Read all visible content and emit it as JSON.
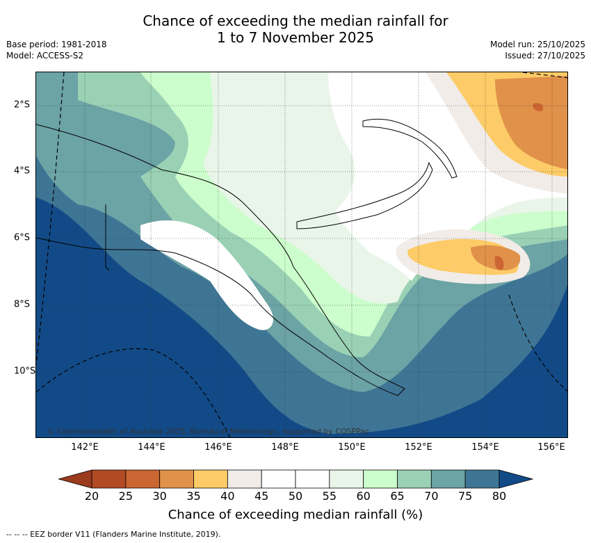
{
  "title": {
    "line1": "Chance of exceeding the median rainfall for",
    "line2": "1 to 7 November 2025"
  },
  "meta": {
    "base_period": "Base period: 1981-2018",
    "model": "Model: ACCESS-S2",
    "model_run": "Model run: 25/10/2025",
    "issued": "Issued: 27/10/2025"
  },
  "copyright": "© Commonwealth of Australia 2025, Bureau of Meteorology, supported by COSPPac",
  "axes": {
    "lon_ticks": [
      "142°E",
      "144°E",
      "146°E",
      "148°E",
      "150°E",
      "152°E",
      "154°E",
      "156°E"
    ],
    "lat_ticks": [
      "2°S",
      "4°S",
      "6°S",
      "8°S",
      "10°S"
    ]
  },
  "colorbar": {
    "label": "Chance of exceeding median rainfall (%)",
    "ticks": [
      "20",
      "25",
      "30",
      "35",
      "40",
      "45",
      "50",
      "55",
      "60",
      "65",
      "70",
      "75",
      "80"
    ],
    "colors": [
      "#b24a23",
      "#cb6531",
      "#e0914a",
      "#fdcc68",
      "#f1ece8",
      "#ffffff",
      "#ffffff",
      "#eaf5e9",
      "#ccfdcc",
      "#9ad1b5",
      "#6ca3a5",
      "#3f7594"
    ],
    "under_color": "#9a3b1d",
    "over_color": "#124a87"
  },
  "footer": "--  --  -- EEZ border V11 (Flanders Marine Institute, 2019).",
  "map_colors": {
    "ocean_deep": "#124a87",
    "c75": "#3f7594",
    "c70": "#6ca3a5",
    "c65": "#9ad1b5",
    "c60": "#ccfdcc",
    "c55": "#eaf5e9",
    "c50": "#ffffff",
    "c40": "#f1ece8",
    "c35": "#fdcc68",
    "c30": "#e0914a",
    "c25": "#cb6531"
  }
}
